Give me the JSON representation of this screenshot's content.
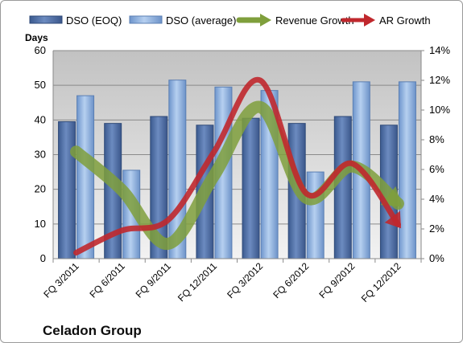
{
  "chart_data": {
    "type": "bar",
    "title": "Celadon Group",
    "ylabel": "Days",
    "ylim": [
      0,
      60
    ],
    "y_ticks": [
      0,
      10,
      20,
      30,
      40,
      50,
      60
    ],
    "y2lim": [
      0,
      14
    ],
    "y2_ticks": [
      "0%",
      "2%",
      "4%",
      "6%",
      "8%",
      "10%",
      "12%",
      "14%"
    ],
    "categories": [
      "FQ 3/2011",
      "FQ 6/2011",
      "FQ 9/2011",
      "FQ 12/2011",
      "FQ 3/2012",
      "FQ 6/2012",
      "FQ 9/2012",
      "FQ 12/2012"
    ],
    "legend_position": "top",
    "grid": true,
    "series": [
      {
        "name": "DSO (EOQ)",
        "type": "bar",
        "axis": "left",
        "color": "#4f6fa6",
        "values": [
          39.5,
          39,
          41,
          38.5,
          40.5,
          39,
          41,
          38.5
        ]
      },
      {
        "name": "DSO (average)",
        "type": "bar",
        "axis": "left",
        "color": "#8fb3e0",
        "values": [
          47,
          25.5,
          51.5,
          49.5,
          48.5,
          25,
          51,
          51
        ]
      },
      {
        "name": "Revenue Growth",
        "type": "line",
        "axis": "right",
        "color": "#7f9f3c",
        "values": [
          7.2,
          4.6,
          1.0,
          5.6,
          10.2,
          4.1,
          6.2,
          3.7
        ]
      },
      {
        "name": "AR Growth",
        "type": "line",
        "axis": "right",
        "color": "#c0282d",
        "values": [
          0.4,
          1.9,
          2.6,
          7.2,
          12.0,
          4.4,
          6.4,
          2.3
        ]
      }
    ]
  }
}
